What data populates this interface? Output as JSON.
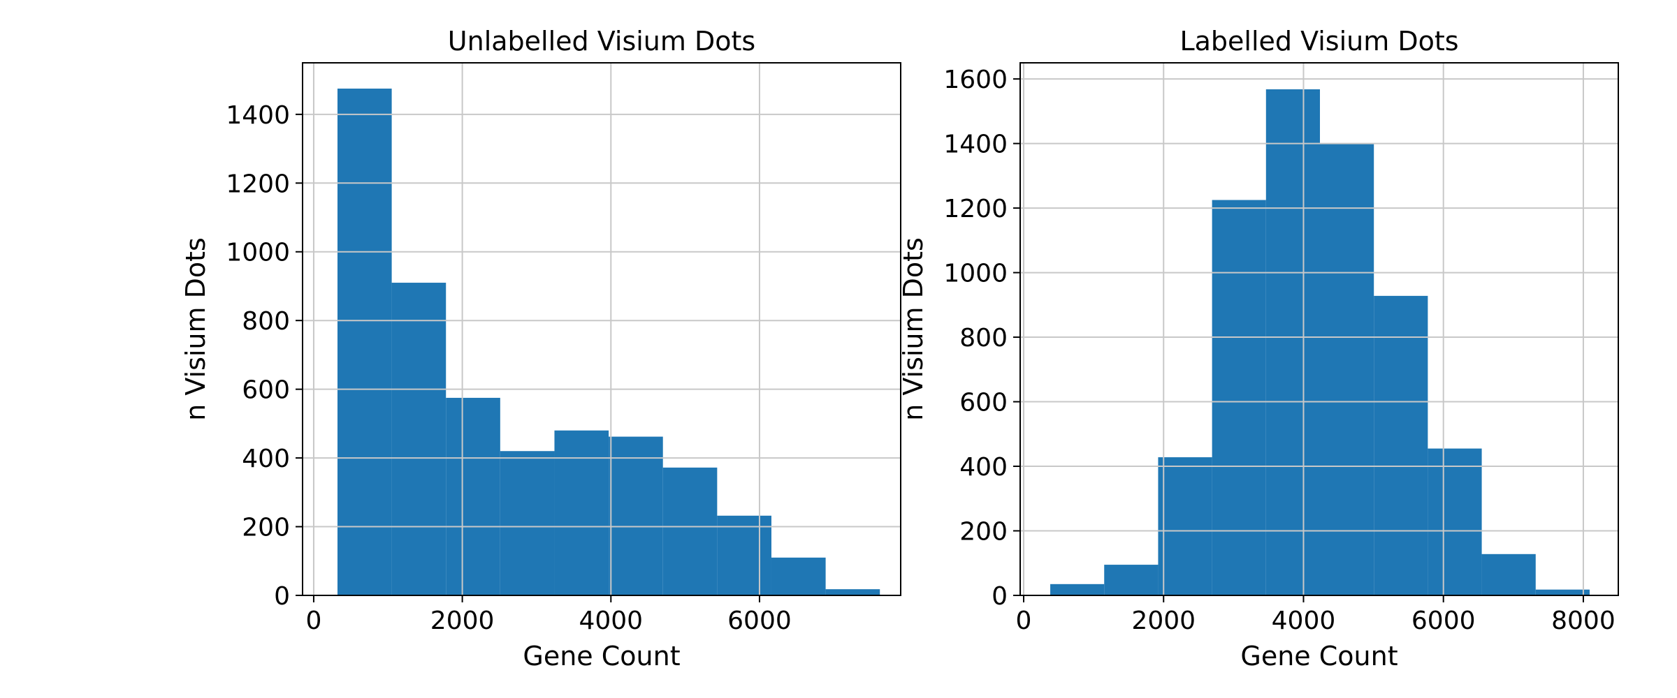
{
  "chart_data": [
    {
      "type": "bar",
      "title": "Unlabelled Visium Dots",
      "xlabel": "Gene Count",
      "ylabel": "n Visium Dots",
      "bin_edges": [
        320,
        1050,
        1780,
        2510,
        3240,
        3970,
        4700,
        5430,
        6160,
        6890,
        7620
      ],
      "values": [
        1475,
        910,
        575,
        420,
        480,
        462,
        372,
        232,
        110,
        18
      ],
      "xlim": [
        -150,
        7900
      ],
      "ylim": [
        0,
        1550
      ],
      "xticks": [
        0,
        2000,
        4000,
        6000
      ],
      "yticks": [
        0,
        200,
        400,
        600,
        800,
        1000,
        1200,
        1400
      ],
      "bar_color": "#1f77b4",
      "grid": true
    },
    {
      "type": "bar",
      "title": "Labelled Visium Dots",
      "xlabel": "Gene Count",
      "ylabel": "n Visium Dots",
      "bin_edges": [
        380,
        1151,
        1922,
        2693,
        3464,
        4235,
        5006,
        5777,
        6548,
        7319,
        8090
      ],
      "values": [
        35,
        95,
        428,
        1225,
        1568,
        1400,
        928,
        455,
        128,
        18
      ],
      "xlim": [
        -50,
        8500
      ],
      "ylim": [
        0,
        1650
      ],
      "xticks": [
        0,
        2000,
        4000,
        6000,
        8000
      ],
      "yticks": [
        0,
        200,
        400,
        600,
        800,
        1000,
        1200,
        1400,
        1600
      ],
      "bar_color": "#1f77b4",
      "grid": true
    }
  ]
}
